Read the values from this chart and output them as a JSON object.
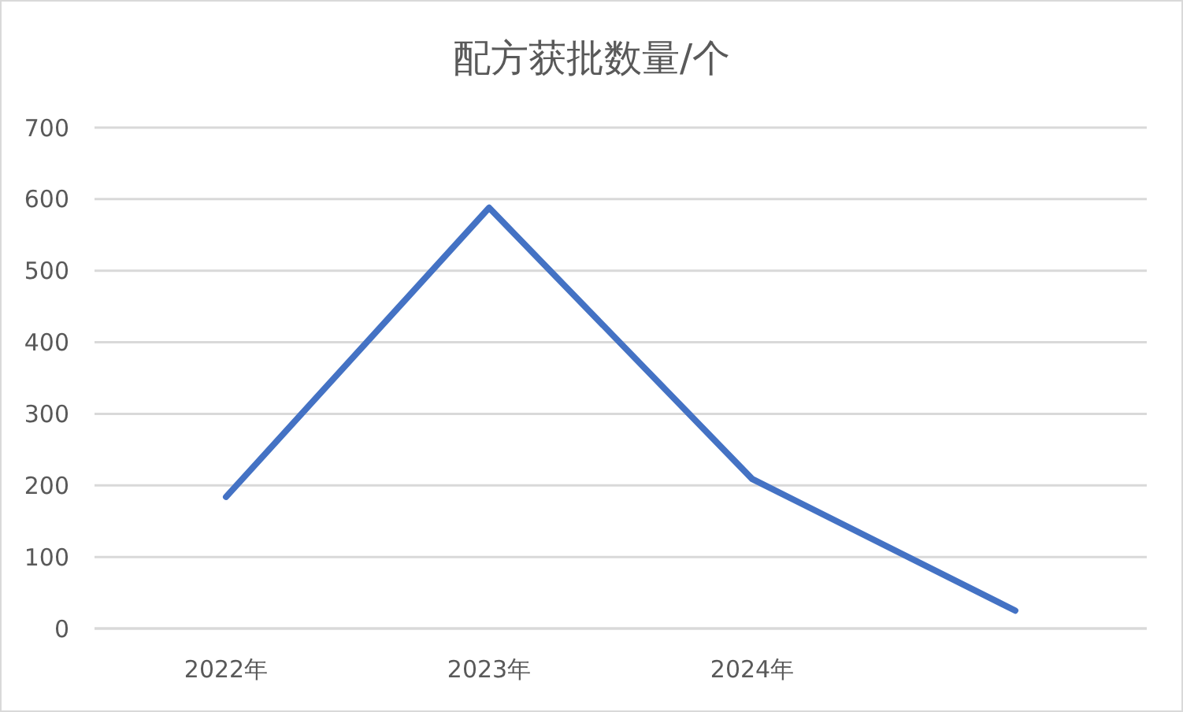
{
  "chart_data": {
    "type": "line",
    "title": "配方获批数量/个",
    "categories": [
      "2022年",
      "2023年",
      "2024年",
      null
    ],
    "series": [
      {
        "color": "#4472c4",
        "values": [
          184,
          588,
          209,
          25
        ]
      }
    ],
    "ylim": [
      0,
      700
    ],
    "yticks": [
      0,
      100,
      200,
      300,
      400,
      500,
      600,
      700
    ],
    "grid": "y",
    "marker": "none",
    "line_style": "solid"
  }
}
